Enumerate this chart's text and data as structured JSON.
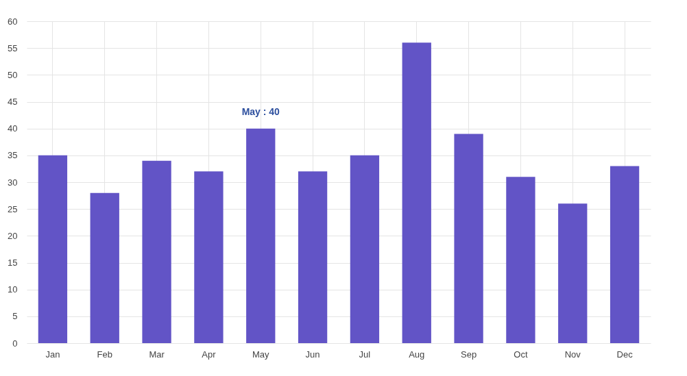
{
  "chart_data": {
    "type": "bar",
    "categories": [
      "Jan",
      "Feb",
      "Mar",
      "Apr",
      "May",
      "Jun",
      "Jul",
      "Aug",
      "Sep",
      "Oct",
      "Nov",
      "Dec"
    ],
    "values": [
      35,
      28,
      34,
      32,
      40,
      32,
      35,
      56,
      39,
      31,
      26,
      33
    ],
    "color": "#6254c6",
    "ylim": [
      0,
      60
    ],
    "yticks": [
      0,
      5,
      10,
      15,
      20,
      25,
      30,
      35,
      40,
      45,
      50,
      55,
      60
    ],
    "grid": true,
    "annotations": [
      {
        "text": "May : 40",
        "x": "May",
        "y": 40
      }
    ]
  }
}
